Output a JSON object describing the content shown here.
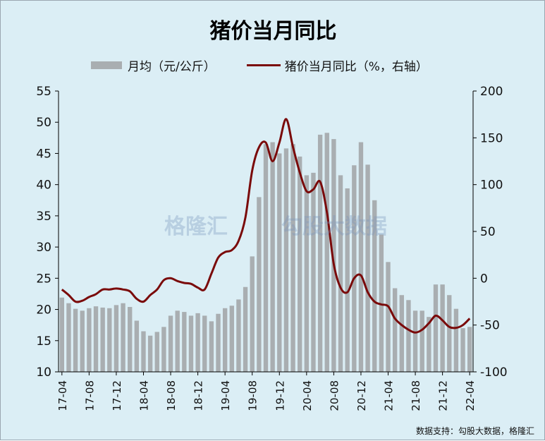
{
  "colors": {
    "background": "#dbeef5",
    "bar": "#a9aeb1",
    "line": "#7a0a0a"
  },
  "watermarks": [
    "格隆汇",
    "勾股大数据"
  ],
  "source_text": "数据支持：勾股大数据，格隆汇",
  "chart_data": {
    "type": "bar",
    "title": "猪价当月同比",
    "legend": {
      "placement": "top",
      "entries": [
        "月均（元/公斤）",
        "猪价当月同比（%，右轴）"
      ]
    },
    "x": [
      "17-04",
      "17-05",
      "17-06",
      "17-07",
      "17-08",
      "17-09",
      "17-10",
      "17-11",
      "17-12",
      "18-01",
      "18-02",
      "18-03",
      "18-04",
      "18-05",
      "18-06",
      "18-07",
      "18-08",
      "18-09",
      "18-10",
      "18-11",
      "18-12",
      "19-01",
      "19-02",
      "19-03",
      "19-04",
      "19-05",
      "19-06",
      "19-07",
      "19-08",
      "19-09",
      "19-10",
      "19-11",
      "19-12",
      "20-01",
      "20-02",
      "20-03",
      "20-04",
      "20-05",
      "20-06",
      "20-07",
      "20-08",
      "20-09",
      "20-10",
      "20-11",
      "20-12",
      "21-01",
      "21-02",
      "21-03",
      "21-04",
      "21-05",
      "21-06",
      "21-07",
      "21-08",
      "21-09",
      "21-10",
      "21-11",
      "21-12",
      "22-01",
      "22-02",
      "22-03",
      "22-04"
    ],
    "tick_labels": [
      "17-04",
      "17-08",
      "17-12",
      "18-04",
      "18-08",
      "18-12",
      "19-04",
      "19-08",
      "19-12",
      "20-04",
      "20-08",
      "20-12",
      "21-04",
      "21-08",
      "21-12",
      "22-04"
    ],
    "series": [
      {
        "name": "月均（元/公斤）",
        "type": "bar",
        "axis": "left",
        "values": [
          21.9,
          21.0,
          20.1,
          19.8,
          20.2,
          20.5,
          20.3,
          20.2,
          20.7,
          21.0,
          20.4,
          18.2,
          16.5,
          15.8,
          16.4,
          17.2,
          19.0,
          19.8,
          19.6,
          19.0,
          19.4,
          19.0,
          18.1,
          19.3,
          20.2,
          20.6,
          21.6,
          23.6,
          28.5,
          38.0,
          46.5,
          46.8,
          45.0,
          45.8,
          46.5,
          44.5,
          41.5,
          41.9,
          48.0,
          48.3,
          47.3,
          41.5,
          39.4,
          43.1,
          46.8,
          43.2,
          37.5,
          32.0,
          27.6,
          23.4,
          22.3,
          21.5,
          19.8,
          19.8,
          18.8,
          24.0,
          24.0,
          22.3,
          20.1,
          17.0,
          17.2
        ]
      },
      {
        "name": "猪价当月同比（%，右轴）",
        "type": "line",
        "axis": "right",
        "values": [
          -12,
          -18,
          -25,
          -24,
          -20,
          -17,
          -12,
          -12,
          -11,
          -12,
          -14,
          -22,
          -25,
          -18,
          -12,
          -2,
          0,
          -3,
          -5,
          -6,
          -10,
          -12,
          5,
          22,
          28,
          30,
          40,
          65,
          115,
          140,
          145,
          125,
          145,
          170,
          140,
          113,
          93,
          95,
          103,
          70,
          15,
          -10,
          -15,
          0,
          3,
          -15,
          -25,
          -28,
          -30,
          -43,
          -50,
          -55,
          -58,
          -55,
          -48,
          -40,
          -45,
          -52,
          -53,
          -50,
          -43
        ]
      }
    ],
    "ylim": [
      10,
      55
    ],
    "yticks": [
      10,
      15,
      20,
      25,
      30,
      35,
      40,
      45,
      50,
      55
    ],
    "y2lim": [
      -100,
      200
    ],
    "y2ticks": [
      -100,
      -50,
      0,
      50,
      100,
      150,
      200
    ],
    "grid": false
  }
}
